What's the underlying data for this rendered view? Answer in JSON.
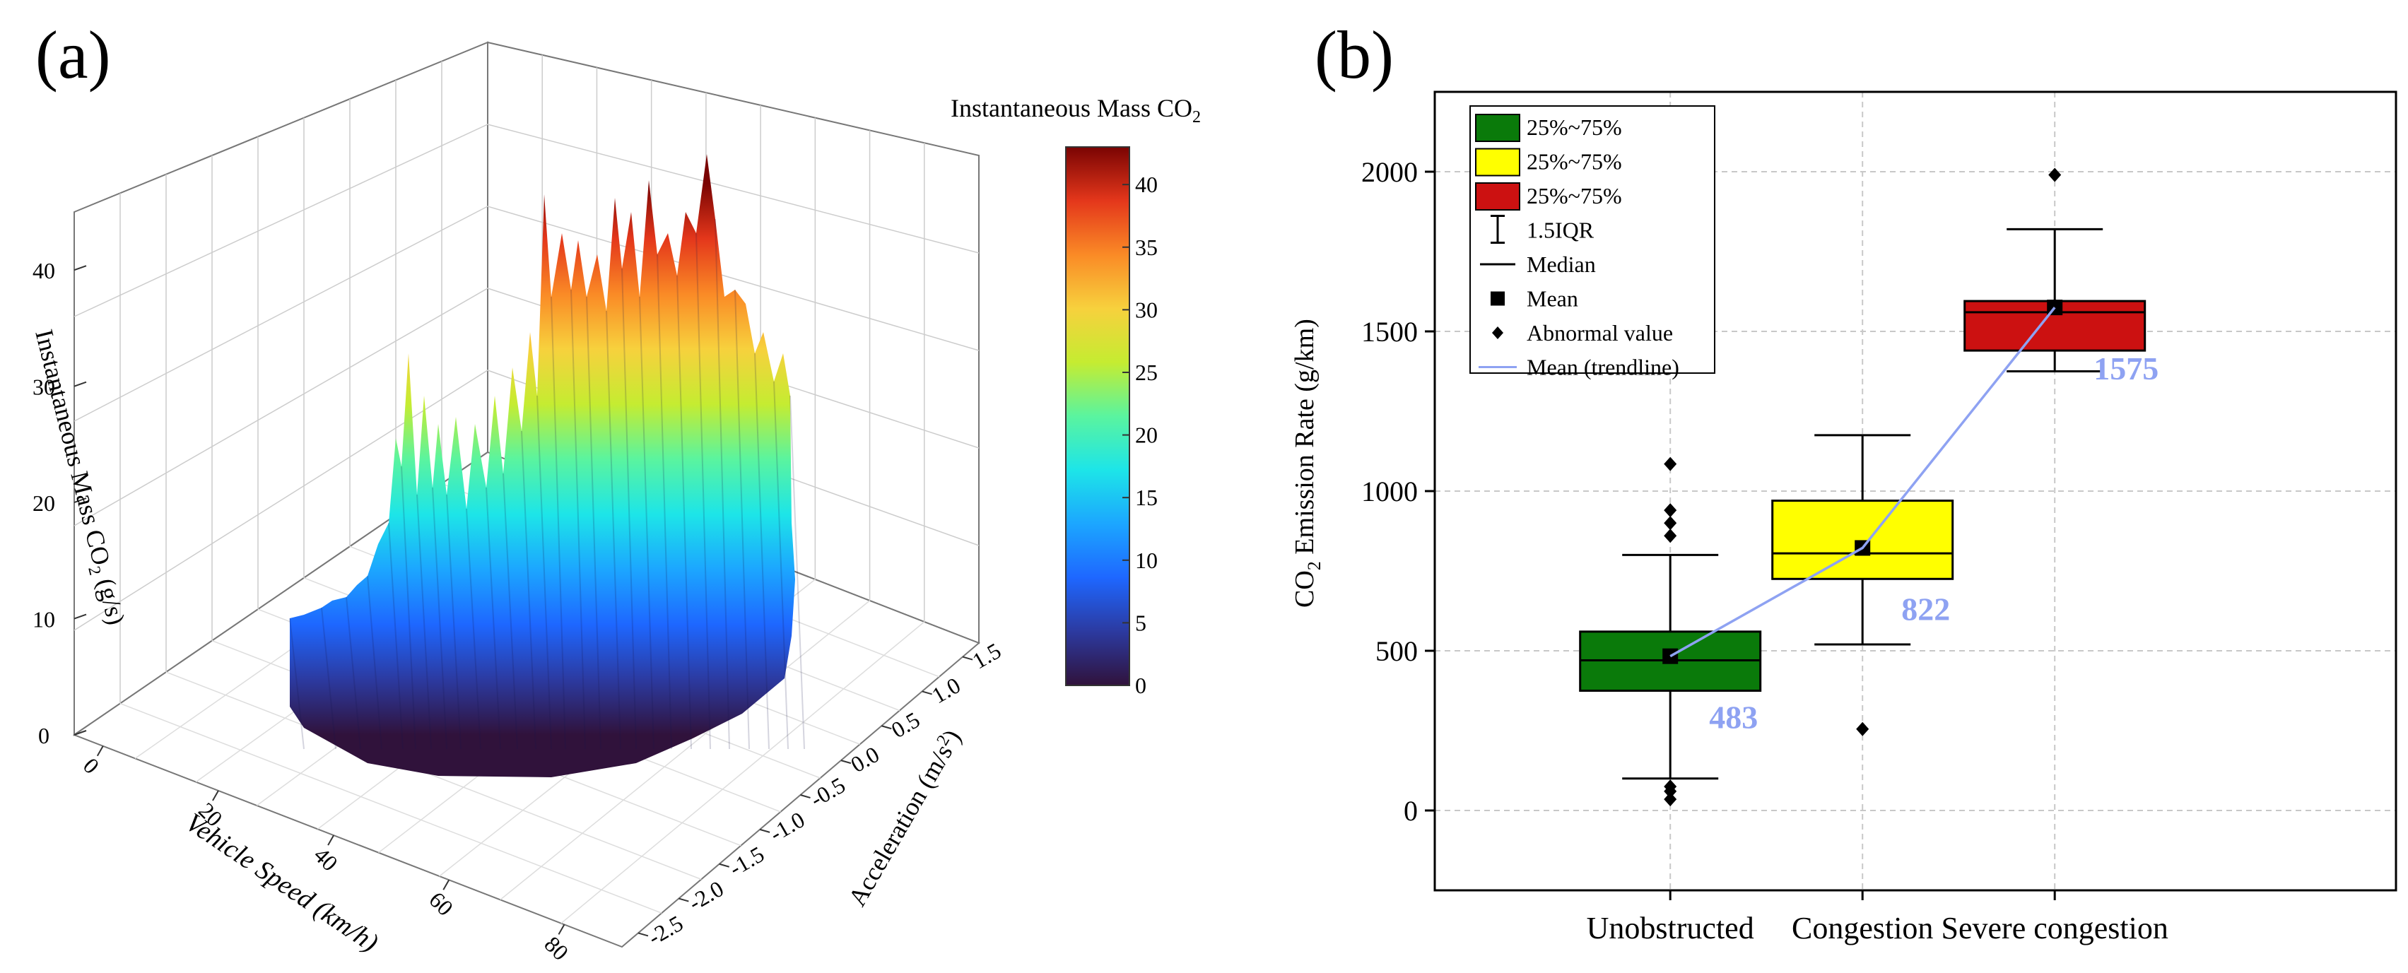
{
  "panel_a": {
    "label": "(a)",
    "colorbar_title": "Instantaneous Mass CO",
    "colorbar_title_sub": "2",
    "colorbar_ticks": [
      "0",
      "5",
      "10",
      "15",
      "20",
      "25",
      "30",
      "35",
      "40"
    ],
    "z_axis_label": "Instantaneous Mass CO",
    "z_axis_label_sub": "2",
    "z_axis_label_unit": " (g/s)",
    "z_ticks": [
      "0",
      "10",
      "20",
      "30",
      "40"
    ],
    "x_axis_label": "Vehicle Speed (km/h)",
    "x_ticks": [
      "0",
      "20",
      "40",
      "60",
      "80"
    ],
    "y_axis_label": "Acceleration (m/s",
    "y_axis_label_sup": "2",
    "y_axis_label_end": ")",
    "y_ticks": [
      "1.5",
      "1.0",
      "0.5",
      "0.0",
      "-0.5",
      "-1.0",
      "-1.5",
      "-2.0",
      "-2.5"
    ],
    "colors": {
      "colormap": [
        "#30123b",
        "#2c3aa0",
        "#1e67ff",
        "#1ca6ff",
        "#1de5e8",
        "#5af49f",
        "#c5ec31",
        "#f7d13d",
        "#fa8a26",
        "#e4371b",
        "#7a0403"
      ]
    }
  },
  "panel_b": {
    "label": "(b)",
    "chart_data": {
      "type": "box",
      "categories": [
        "Unobstructed",
        "Congestion",
        "Severe congestion"
      ],
      "ylabel_prefix": "CO",
      "ylabel_sub": "2",
      "ylabel_rest": " Emission Rate (g/km)",
      "ylim": [
        -250,
        2250
      ],
      "yticks": [
        0,
        500,
        1000,
        1500,
        2000
      ],
      "grid": true,
      "legend_position": "top-left",
      "boxes": [
        {
          "name": "Unobstructed",
          "q1": 375,
          "median": 470,
          "q3": 560,
          "whisker_low": 100,
          "whisker_high": 800,
          "mean": 483,
          "mean_label": "483",
          "outliers": [
            35,
            60,
            75,
            860,
            900,
            940,
            1085
          ],
          "color": "#0a7a0a"
        },
        {
          "name": "Congestion",
          "q1": 725,
          "median": 805,
          "q3": 970,
          "whisker_low": 520,
          "whisker_high": 1175,
          "mean": 822,
          "mean_label": "822",
          "outliers": [
            255
          ],
          "color": "#ffff00"
        },
        {
          "name": "Severe congestion",
          "q1": 1440,
          "median": 1560,
          "q3": 1595,
          "whisker_low": 1375,
          "whisker_high": 1820,
          "mean": 1575,
          "mean_label": "1575",
          "outliers": [
            1990
          ],
          "color": "#cc1111"
        }
      ],
      "legend": [
        {
          "label": "25%~75%",
          "kind": "box",
          "color": "#0a7a0a"
        },
        {
          "label": "25%~75%",
          "kind": "box",
          "color": "#ffff00"
        },
        {
          "label": "25%~75%",
          "kind": "box",
          "color": "#cc1111"
        },
        {
          "label": "1.5IQR",
          "kind": "whisker"
        },
        {
          "label": "Median",
          "kind": "line"
        },
        {
          "label": "Mean",
          "kind": "square"
        },
        {
          "label": "Abnormal value",
          "kind": "diamond"
        },
        {
          "label": "Mean (trendline)",
          "kind": "trend"
        }
      ],
      "trend_color": "#8ea2f2",
      "mean_label_color": "#8ea2f2"
    }
  }
}
